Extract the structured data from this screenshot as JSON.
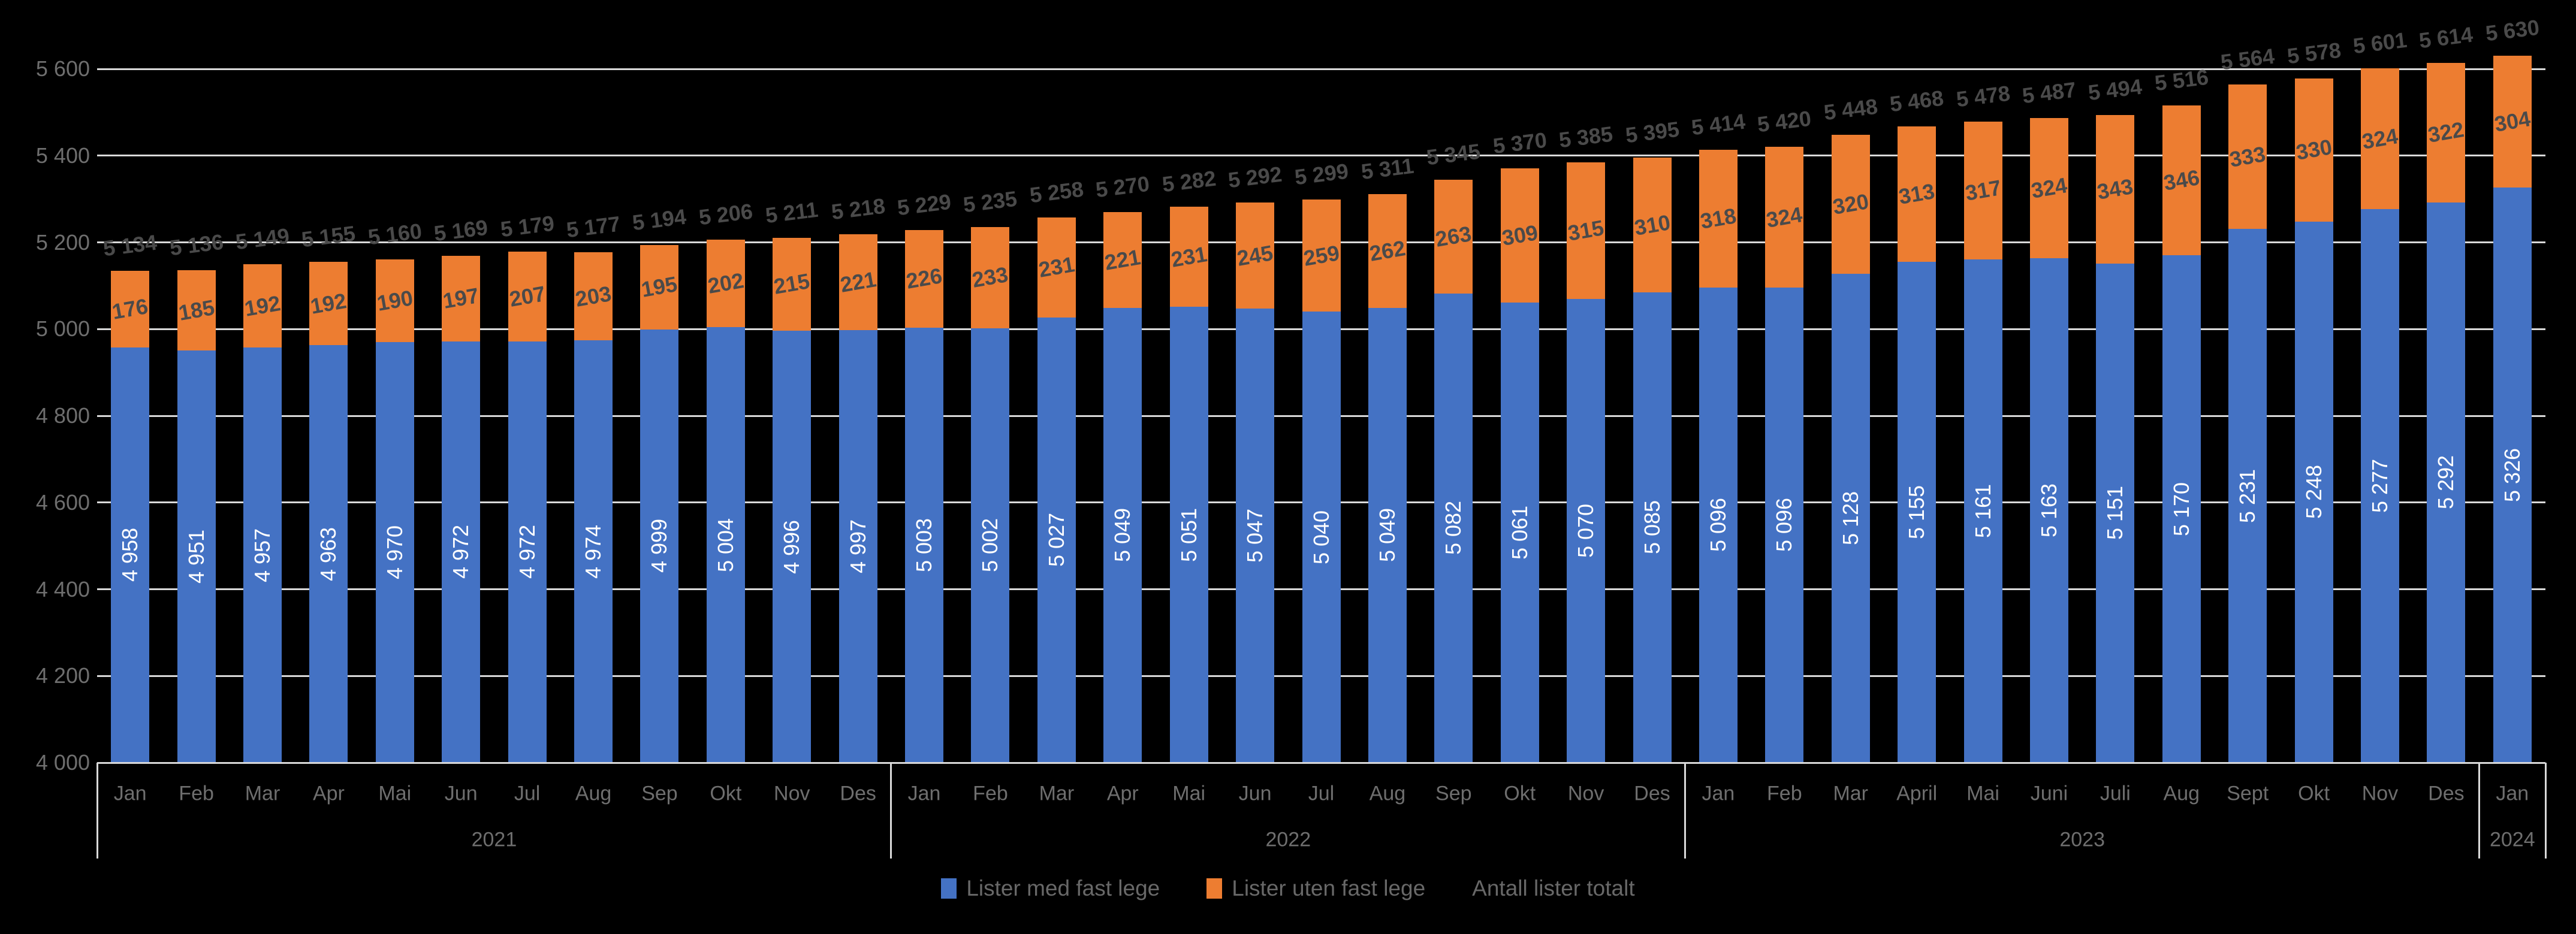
{
  "chart_data": {
    "type": "bar",
    "stacked": true,
    "title": "",
    "legend_position": "bottom",
    "grid": true,
    "groups": [
      {
        "year": "2021",
        "months": [
          "Jan",
          "Feb",
          "Mar",
          "Apr",
          "Mai",
          "Jun",
          "Jul",
          "Aug",
          "Sep",
          "Okt",
          "Nov",
          "Des"
        ]
      },
      {
        "year": "2022",
        "months": [
          "Jan",
          "Feb",
          "Mar",
          "Apr",
          "Mai",
          "Jun",
          "Jul",
          "Aug",
          "Sep",
          "Okt",
          "Nov",
          "Des"
        ]
      },
      {
        "year": "2023",
        "months": [
          "Jan",
          "Feb",
          "Mar",
          "April",
          "Mai",
          "Juni",
          "Juli",
          "Aug",
          "Sept",
          "Okt",
          "Nov",
          "Des"
        ]
      },
      {
        "year": "2024",
        "months": [
          "Jan"
        ]
      }
    ],
    "series": [
      {
        "name": "Lister med fast lege",
        "color": "#4472C4",
        "values": [
          4958,
          4951,
          4957,
          4963,
          4970,
          4972,
          4972,
          4974,
          4999,
          5004,
          4996,
          4997,
          5003,
          5002,
          5027,
          5049,
          5051,
          5047,
          5040,
          5049,
          5082,
          5061,
          5070,
          5085,
          5096,
          5096,
          5128,
          5155,
          5161,
          5163,
          5151,
          5170,
          5231,
          5248,
          5277,
          5292,
          5326
        ]
      },
      {
        "name": "Lister uten fast lege",
        "color": "#ED7D31",
        "values": [
          176,
          185,
          192,
          192,
          190,
          197,
          207,
          203,
          195,
          202,
          215,
          221,
          226,
          233,
          231,
          221,
          231,
          245,
          259,
          262,
          263,
          309,
          315,
          310,
          318,
          324,
          320,
          313,
          317,
          324,
          343,
          346,
          333,
          330,
          324,
          322,
          304
        ]
      },
      {
        "name": "Antall lister totalt",
        "color": null,
        "role": "totals",
        "values": [
          5134,
          5136,
          5149,
          5155,
          5160,
          5169,
          5179,
          5177,
          5194,
          5206,
          5211,
          5218,
          5229,
          5235,
          5258,
          5270,
          5282,
          5292,
          5299,
          5311,
          5345,
          5370,
          5385,
          5395,
          5414,
          5420,
          5448,
          5468,
          5478,
          5487,
          5494,
          5516,
          5564,
          5578,
          5601,
          5614,
          5630
        ]
      }
    ],
    "y_axis": {
      "min": 4000,
      "max": 5600,
      "step": 200,
      "tick_labels": [
        "5 600",
        "5 400",
        "5 200",
        "5 000",
        "4 800",
        "4 600",
        "4 400",
        "4 200",
        "4 000"
      ]
    },
    "colors": {
      "background": "#000000",
      "gridline": "#D9D9D9",
      "axis_text": "#6E6E6E",
      "data_label": "#4A4A4A",
      "bar_inner_label": "#FFFFFF"
    }
  }
}
